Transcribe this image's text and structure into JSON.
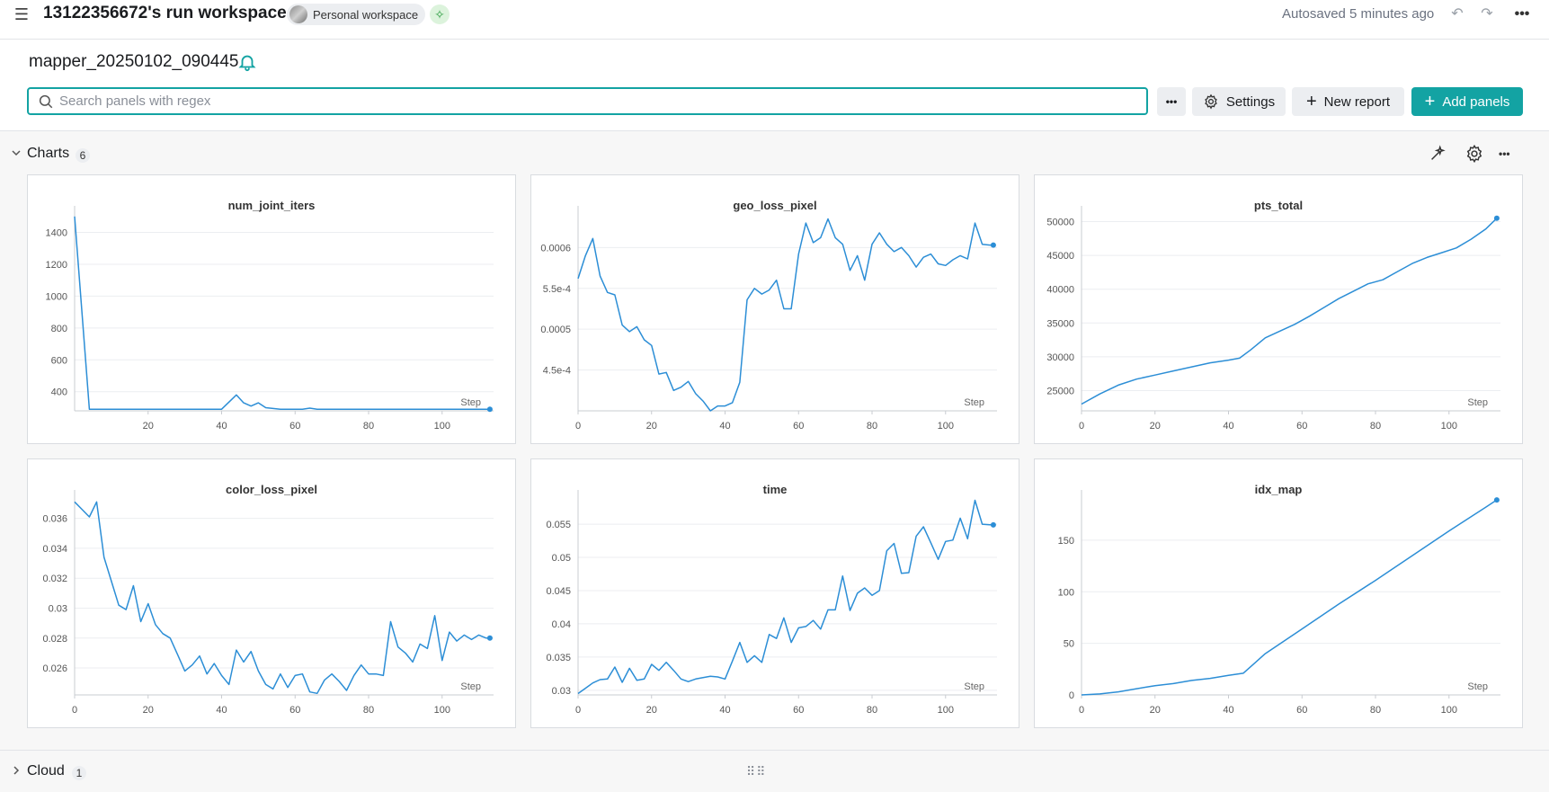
{
  "header": {
    "title": "13122356672's run workspace",
    "workspace_badge": "Personal workspace",
    "autosaved": "Autosaved 5 minutes ago"
  },
  "run": {
    "name": "mapper_20250102_090445"
  },
  "search": {
    "placeholder": "Search panels with regex"
  },
  "toolbar": {
    "settings_label": "Settings",
    "new_report_label": "New report",
    "add_panels_label": "Add panels"
  },
  "sections": [
    {
      "title": "Charts",
      "count": "6"
    },
    {
      "title": "Cloud",
      "count": "1"
    }
  ],
  "colors": {
    "accent": "#13a3a3",
    "line": "#2c8ed6"
  },
  "chart_data": [
    {
      "type": "line",
      "title": "num_joint_iters",
      "xlabel": "Step",
      "xlim": [
        0,
        114
      ],
      "ylim": [
        280,
        1510
      ],
      "xticks": [
        20,
        40,
        60,
        80,
        100
      ],
      "yticks": [
        400,
        600,
        800,
        1000,
        1200,
        1400
      ],
      "yticklabels": [
        "400",
        "600",
        "800",
        "1000",
        "1200",
        "1400"
      ],
      "x": [
        0,
        4,
        8,
        20,
        40,
        44,
        46,
        48,
        50,
        52,
        56,
        60,
        62,
        64,
        66,
        80,
        100,
        113
      ],
      "y": [
        1500,
        290,
        290,
        290,
        290,
        380,
        330,
        310,
        330,
        300,
        290,
        290,
        290,
        297,
        290,
        290,
        290,
        290
      ]
    },
    {
      "type": "line",
      "title": "geo_loss_pixel",
      "xlabel": "Step",
      "xlim": [
        0,
        114
      ],
      "ylim": [
        0.0004,
        0.00064
      ],
      "xticks": [
        0,
        20,
        40,
        60,
        80,
        100
      ],
      "yticks": [
        0.00045,
        0.0005,
        0.00055,
        0.0006
      ],
      "yticklabels": [
        "4.5e-4",
        "0.0005",
        "5.5e-4",
        "0.0006"
      ],
      "x": [
        0,
        2,
        4,
        6,
        8,
        10,
        12,
        14,
        16,
        18,
        20,
        22,
        24,
        26,
        28,
        30,
        32,
        34,
        36,
        38,
        40,
        42,
        44,
        46,
        48,
        50,
        52,
        54,
        56,
        58,
        60,
        62,
        64,
        66,
        68,
        70,
        72,
        74,
        76,
        78,
        80,
        82,
        84,
        86,
        88,
        90,
        92,
        94,
        96,
        98,
        100,
        102,
        104,
        106,
        108,
        110,
        112,
        113
      ],
      "y": [
        0.000562,
        0.00059,
        0.000611,
        0.000565,
        0.000545,
        0.000542,
        0.000505,
        0.000497,
        0.000503,
        0.000487,
        0.00048,
        0.000445,
        0.000447,
        0.000425,
        0.000429,
        0.000436,
        0.000421,
        0.000412,
        0.0004,
        0.000406,
        0.000406,
        0.00041,
        0.000435,
        0.000536,
        0.00055,
        0.000543,
        0.000548,
        0.00056,
        0.000525,
        0.000525,
        0.000592,
        0.00063,
        0.000606,
        0.000612,
        0.000635,
        0.000612,
        0.000604,
        0.000572,
        0.00059,
        0.00056,
        0.000604,
        0.000618,
        0.000604,
        0.000595,
        0.0006,
        0.00059,
        0.000576,
        0.000588,
        0.000592,
        0.00058,
        0.000578,
        0.000585,
        0.00059,
        0.000586,
        0.00063,
        0.000604,
        0.000603,
        0.000603
      ]
    },
    {
      "type": "line",
      "title": "pts_total",
      "xlabel": "Step",
      "xlim": [
        0,
        114
      ],
      "ylim": [
        22000,
        51000
      ],
      "xticks": [
        0,
        20,
        40,
        60,
        80,
        100
      ],
      "yticks": [
        25000,
        30000,
        35000,
        40000,
        45000,
        50000
      ],
      "yticklabels": [
        "25000",
        "30000",
        "35000",
        "40000",
        "45000",
        "50000"
      ],
      "x": [
        0,
        5,
        10,
        15,
        20,
        25,
        30,
        35,
        40,
        43,
        46,
        50,
        54,
        58,
        62,
        66,
        70,
        74,
        78,
        82,
        86,
        90,
        94,
        98,
        102,
        106,
        110,
        113
      ],
      "y": [
        23000,
        24500,
        25800,
        26700,
        27300,
        27900,
        28500,
        29100,
        29500,
        29800,
        31000,
        32800,
        33800,
        34800,
        36000,
        37300,
        38600,
        39700,
        40800,
        41400,
        42600,
        43800,
        44700,
        45400,
        46100,
        47400,
        48900,
        50500
      ]
    },
    {
      "type": "line",
      "title": "color_loss_pixel",
      "xlabel": "Step",
      "xlim": [
        0,
        114
      ],
      "ylim": [
        0.0242,
        0.0373
      ],
      "xticks": [
        0,
        20,
        40,
        60,
        80,
        100
      ],
      "yticks": [
        0.026,
        0.028,
        0.03,
        0.032,
        0.034,
        0.036
      ],
      "yticklabels": [
        "0.026",
        "0.028",
        "0.03",
        "0.032",
        "0.034",
        "0.036"
      ],
      "x": [
        0,
        2,
        4,
        6,
        8,
        10,
        12,
        14,
        16,
        18,
        20,
        22,
        24,
        26,
        28,
        30,
        32,
        34,
        36,
        38,
        40,
        42,
        44,
        46,
        48,
        50,
        52,
        54,
        56,
        58,
        60,
        62,
        64,
        66,
        68,
        70,
        72,
        74,
        76,
        78,
        80,
        82,
        84,
        86,
        88,
        90,
        92,
        94,
        96,
        98,
        100,
        102,
        104,
        106,
        108,
        110,
        112,
        113
      ],
      "y": [
        0.0371,
        0.0366,
        0.0361,
        0.0371,
        0.0334,
        0.0318,
        0.0302,
        0.0299,
        0.0315,
        0.0291,
        0.0303,
        0.0289,
        0.0283,
        0.028,
        0.0269,
        0.0258,
        0.0262,
        0.0268,
        0.0256,
        0.0263,
        0.0255,
        0.0249,
        0.0272,
        0.0264,
        0.0271,
        0.0258,
        0.0249,
        0.0246,
        0.0256,
        0.0247,
        0.0255,
        0.0256,
        0.0244,
        0.0243,
        0.0252,
        0.0256,
        0.0251,
        0.0245,
        0.0255,
        0.0262,
        0.0256,
        0.0256,
        0.0255,
        0.0291,
        0.0274,
        0.027,
        0.0264,
        0.0276,
        0.0273,
        0.0295,
        0.0265,
        0.0284,
        0.0278,
        0.0282,
        0.0279,
        0.0282,
        0.028,
        0.028
      ]
    },
    {
      "type": "line",
      "title": "time",
      "xlabel": "Step",
      "xlim": [
        0,
        114
      ],
      "ylim": [
        0.0293,
        0.0588
      ],
      "xticks": [
        0,
        20,
        40,
        60,
        80,
        100
      ],
      "yticks": [
        0.03,
        0.035,
        0.04,
        0.045,
        0.05,
        0.055
      ],
      "yticklabels": [
        "0.03",
        "0.035",
        "0.04",
        "0.045",
        "0.05",
        "0.055"
      ],
      "x": [
        0,
        2,
        4,
        6,
        8,
        10,
        12,
        14,
        16,
        18,
        20,
        22,
        24,
        26,
        28,
        30,
        32,
        34,
        36,
        38,
        40,
        42,
        44,
        46,
        48,
        50,
        52,
        54,
        56,
        58,
        60,
        62,
        64,
        66,
        68,
        70,
        72,
        74,
        76,
        78,
        80,
        82,
        84,
        86,
        88,
        90,
        92,
        94,
        96,
        98,
        100,
        102,
        104,
        106,
        108,
        110,
        112,
        113
      ],
      "y": [
        0.0295,
        0.0303,
        0.0311,
        0.0316,
        0.0317,
        0.0335,
        0.0312,
        0.0333,
        0.0315,
        0.0317,
        0.0339,
        0.033,
        0.0342,
        0.033,
        0.0317,
        0.0313,
        0.0317,
        0.0319,
        0.0321,
        0.032,
        0.0317,
        0.0344,
        0.0372,
        0.0342,
        0.0352,
        0.0342,
        0.0384,
        0.0378,
        0.0409,
        0.0372,
        0.0394,
        0.0396,
        0.0405,
        0.0392,
        0.0421,
        0.0421,
        0.0472,
        0.042,
        0.0446,
        0.0454,
        0.0443,
        0.045,
        0.051,
        0.0521,
        0.0476,
        0.0477,
        0.0532,
        0.0546,
        0.0522,
        0.0497,
        0.0524,
        0.0526,
        0.0559,
        0.0528,
        0.0586,
        0.055,
        0.0549,
        0.0549
      ]
    },
    {
      "type": "line",
      "title": "idx_map",
      "xlabel": "Step",
      "xlim": [
        0,
        114
      ],
      "ylim": [
        0,
        190
      ],
      "xticks": [
        0,
        20,
        40,
        60,
        80,
        100
      ],
      "yticks": [
        0,
        50,
        100,
        150
      ],
      "yticklabels": [
        "0",
        "50",
        "100",
        "150"
      ],
      "x": [
        0,
        5,
        10,
        15,
        20,
        25,
        30,
        35,
        40,
        44,
        50,
        60,
        70,
        80,
        90,
        100,
        110,
        113
      ],
      "y": [
        0,
        1,
        3,
        6,
        9,
        11,
        14,
        16,
        19,
        21,
        40,
        64,
        88,
        111,
        135,
        159,
        182,
        189
      ]
    }
  ]
}
